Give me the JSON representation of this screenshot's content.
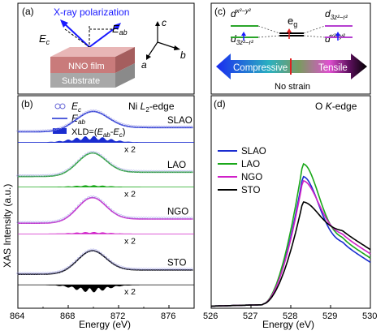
{
  "panel_a": {
    "label": "(a)",
    "xray_title": "X-ray polarization",
    "ec_label": "E",
    "ec_sub": "c",
    "eab_label": "E",
    "eab_sub": "ab",
    "film_label": "NNO film",
    "substrate_label": "Substrate",
    "axis_c": "c",
    "axis_b": "b",
    "axis_a": "a",
    "colors": {
      "film": "#c97b7b",
      "film_top": "#e8b6b6",
      "substrate": "#9a9a9a",
      "substrate_top": "#c8c8c8",
      "arrow": "#1a1aff"
    }
  },
  "panel_c": {
    "label": "(c)",
    "d_x2y2_left": "d",
    "d_x2y2_left_sub": "x²−y²",
    "d_3z2r2_left": "d",
    "d_3z2r2_left_sub": "3z²−r²",
    "eg_label": "e",
    "eg_sub": "g",
    "d_3z2r2_right": "d",
    "d_3z2r2_right_sub": "3z²−r²",
    "d_x2y2_right": "d",
    "d_x2y2_right_sub": "x²−y²",
    "compressive": "Compressive",
    "tensile": "Tensile",
    "no_strain": "No strain",
    "colors": {
      "left_level": "#2aa52a",
      "right_level": "#b53fd0",
      "eg": "#000000",
      "arrow_left": "#1a2cf0",
      "arrow_mid": "#2ab0c0",
      "arrow_right": "#e050d0",
      "arrow_tip": "#000000",
      "divider": "#e02020"
    }
  },
  "chart_data": [
    {
      "panel": "(b)",
      "type": "line",
      "title": "Ni L2-edge",
      "title_parts": {
        "main": "Ni ",
        "L": "L",
        "sub": "2",
        "rest": "-edge"
      },
      "xlabel": "Energy (eV)",
      "ylabel": "XAS Intensity (a.u.)",
      "xlim": [
        864,
        878
      ],
      "xticks": [
        864,
        868,
        872,
        876
      ],
      "legend": {
        "ec": "E",
        "ec_sub": "c",
        "eab": "E",
        "eab_sub": "ab",
        "xld": "XLD=(",
        "xld_mid": "E",
        "xld_mid_sub": "ab",
        "xld_minus": "-",
        "xld_ec": "E",
        "xld_ec_sub": "c",
        "xld_close": ")"
      },
      "x2_label": "x 2",
      "series": [
        {
          "name": "SLAO",
          "color": "#1a2cd0",
          "baseline": 0.83,
          "peak_center": 869.8,
          "peak_width": 1.8,
          "peak_height": 0.085,
          "step": 0.02,
          "xld_amp": 0.03
        },
        {
          "name": "LAO",
          "color": "#1aa81a",
          "baseline": 0.62,
          "peak_center": 869.8,
          "peak_width": 1.6,
          "peak_height": 0.1,
          "step": 0.02,
          "xld_amp": 0.008
        },
        {
          "name": "NGO",
          "color": "#d020c8",
          "baseline": 0.4,
          "peak_center": 869.8,
          "peak_width": 1.6,
          "peak_height": 0.11,
          "step": 0.02,
          "xld_amp": 0.008
        },
        {
          "name": "STO",
          "color": "#000000",
          "baseline": 0.16,
          "peak_center": 869.8,
          "peak_width": 1.6,
          "peak_height": 0.1,
          "step": 0.02,
          "xld_amp": -0.035
        }
      ]
    },
    {
      "panel": "(d)",
      "type": "line",
      "title": "O K-edge",
      "title_parts": {
        "main": "O ",
        "K": "K",
        "rest": "-edge"
      },
      "xlabel": "Energy (eV)",
      "xlim": [
        526,
        530
      ],
      "xticks": [
        526,
        527,
        528,
        529,
        530
      ],
      "series": [
        {
          "name": "SLAO",
          "color": "#1a2cd0",
          "peak": 0.62
        },
        {
          "name": "LAO",
          "color": "#1aa81a",
          "peak": 0.68
        },
        {
          "name": "NGO",
          "color": "#d020c8",
          "peak": 0.6
        },
        {
          "name": "STO",
          "color": "#000000",
          "peak": 0.5
        }
      ]
    }
  ]
}
